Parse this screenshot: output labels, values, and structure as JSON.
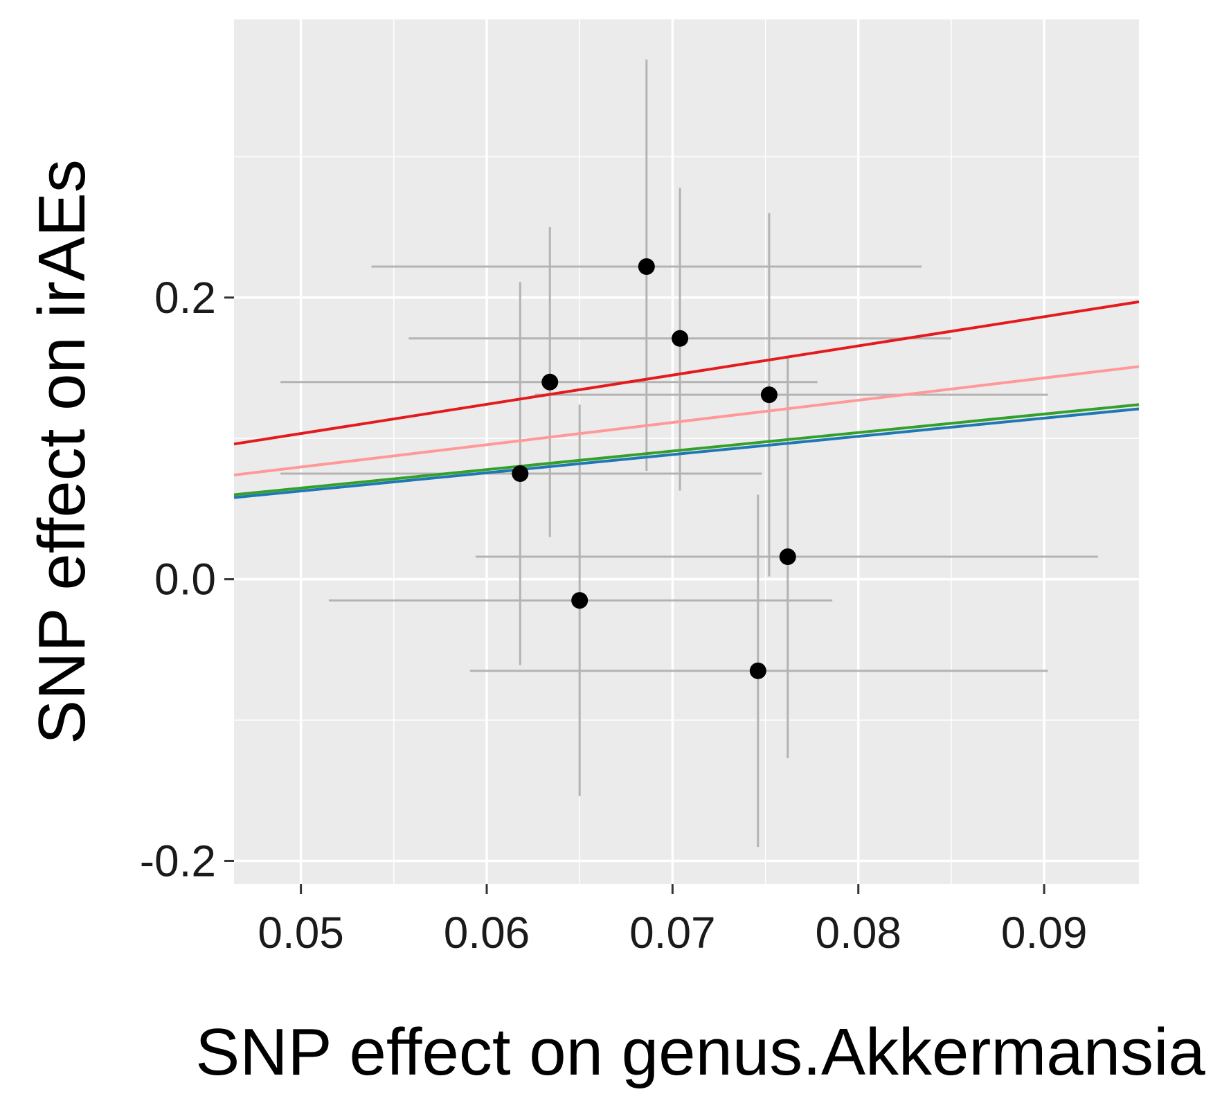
{
  "chart_data": {
    "type": "scatter",
    "title": "",
    "xlabel": "SNP effect on genus.Akkermansia",
    "ylabel": "SNP effect on irAEs",
    "xlim": [
      0.0464,
      0.0951
    ],
    "ylim": [
      -0.2165,
      0.3975
    ],
    "x_ticks": [
      0.05,
      0.06,
      0.07,
      0.08,
      0.09
    ],
    "x_tick_labels": [
      "0.05",
      "0.06",
      "0.07",
      "0.08",
      "0.09"
    ],
    "y_ticks": [
      -0.2,
      0.0,
      0.2
    ],
    "y_tick_labels": [
      "-0.2",
      "0.0",
      "0.2"
    ],
    "grid": true,
    "legend": "none",
    "colors": {
      "panel_background": "#ebebeb",
      "grid": "#ffffff",
      "points": "#000000",
      "error_bars": "#b3b3b3"
    },
    "points": [
      {
        "x": 0.0686,
        "y": 0.222,
        "x_low": 0.0538,
        "x_high": 0.0834,
        "y_low": 0.077,
        "y_high": 0.369
      },
      {
        "x": 0.0704,
        "y": 0.171,
        "x_low": 0.0558,
        "x_high": 0.085,
        "y_low": 0.063,
        "y_high": 0.278
      },
      {
        "x": 0.0634,
        "y": 0.14,
        "x_low": 0.0489,
        "x_high": 0.0778,
        "y_low": 0.03,
        "y_high": 0.25
      },
      {
        "x": 0.0752,
        "y": 0.131,
        "x_low": 0.0626,
        "x_high": 0.0902,
        "y_low": 0.002,
        "y_high": 0.26
      },
      {
        "x": 0.0618,
        "y": 0.075,
        "x_low": 0.0489,
        "x_high": 0.0748,
        "y_low": -0.061,
        "y_high": 0.211
      },
      {
        "x": 0.0762,
        "y": 0.016,
        "x_low": 0.0594,
        "x_high": 0.0929,
        "y_low": -0.127,
        "y_high": 0.158
      },
      {
        "x": 0.065,
        "y": -0.015,
        "x_low": 0.0515,
        "x_high": 0.0786,
        "y_low": -0.154,
        "y_high": 0.124
      },
      {
        "x": 0.0746,
        "y": -0.065,
        "x_low": 0.0591,
        "x_high": 0.0902,
        "y_low": -0.19,
        "y_high": 0.06
      }
    ],
    "series": [
      {
        "color": "#e41a1c",
        "x": [
          0.0464,
          0.0951
        ],
        "y": [
          0.096,
          0.197
        ]
      },
      {
        "color": "#ff9999",
        "x": [
          0.0464,
          0.0951
        ],
        "y": [
          0.074,
          0.151
        ]
      },
      {
        "color": "#33a02c",
        "x": [
          0.0464,
          0.0951
        ],
        "y": [
          0.06,
          0.124
        ]
      },
      {
        "color": "#1f78b4",
        "x": [
          0.0464,
          0.0951
        ],
        "y": [
          0.058,
          0.121
        ]
      }
    ]
  }
}
